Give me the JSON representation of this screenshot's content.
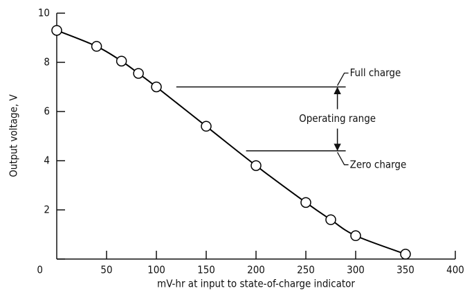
{
  "chart_data": {
    "type": "line",
    "x_label": "mV-hr at input to state-of-charge indicator",
    "y_label": "Output voltage, V",
    "series": [
      {
        "color": "#000000",
        "x": [
          0,
          40,
          65,
          82,
          100,
          150,
          200,
          250,
          275,
          300,
          350
        ],
        "values": [
          9.3,
          8.65,
          8.05,
          7.55,
          7.0,
          5.4,
          3.8,
          2.3,
          1.6,
          0.95,
          0.2
        ]
      }
    ],
    "xlim": [
      0,
      400
    ],
    "xticks": [
      50,
      100,
      150,
      200,
      250,
      300,
      350,
      400
    ],
    "ylim": [
      0,
      10
    ],
    "yticks": [
      0,
      2,
      4,
      6,
      8,
      10
    ],
    "reference_lines": [
      {
        "label": "Full charge",
        "y": 7.0,
        "x": [
          120,
          290
        ]
      },
      {
        "label": "Zero charge",
        "y": 4.4,
        "x": [
          190,
          290
        ]
      }
    ],
    "range_label": "Operating range"
  }
}
